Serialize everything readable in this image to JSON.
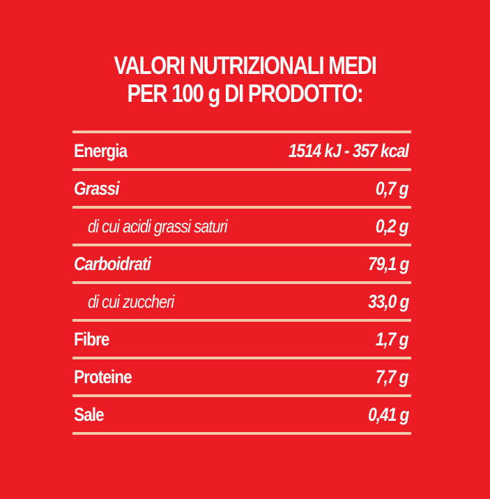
{
  "title": {
    "line1": "VALORI NUTRIZIONALI MEDI",
    "line2": "PER 100 g DI PRODOTTO:"
  },
  "rows": [
    {
      "label": "Energia",
      "value": "1514 kJ - 357 kcal"
    },
    {
      "label": "Grassi",
      "value": "0,7 g"
    },
    {
      "label": "di cui acidi grassi saturi",
      "value": "0,2 g"
    },
    {
      "label": "Carboidrati",
      "value": "79,1 g"
    },
    {
      "label": "di cui zuccheri",
      "value": "33,0 g"
    },
    {
      "label": "Fibre",
      "value": "1,7 g"
    },
    {
      "label": "Proteine",
      "value": "7,7 g"
    },
    {
      "label": "Sale",
      "value": "0,41 g"
    }
  ],
  "colors": {
    "background": "#ec1c24",
    "text": "#ffffff",
    "rule": "#f4c7a8"
  }
}
